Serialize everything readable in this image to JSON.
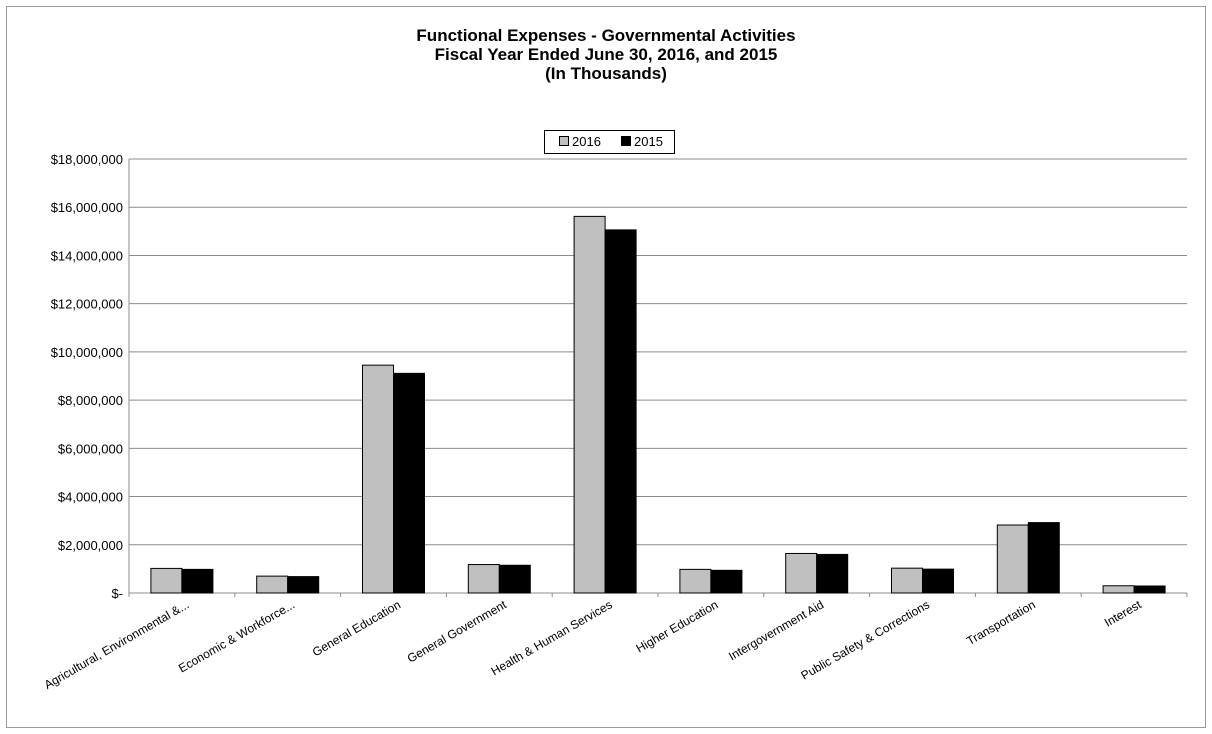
{
  "chart_data": {
    "type": "bar",
    "title": [
      "Functional Expenses - Governmental Activities",
      "Fiscal Year Ended June 30, 2016, and 2015",
      "(In Thousands)"
    ],
    "categories": [
      "Agricultural, Environmental &...",
      "Economic & Workforce...",
      "General Education",
      "General Government",
      "Health & Human Services",
      "Higher Education",
      "Intergovernment Aid",
      "Public Safety & Corrections",
      "Transportation",
      "Interest"
    ],
    "series": [
      {
        "name": "2016",
        "color": "#c0c0c0",
        "values": [
          1020000,
          700000,
          9450000,
          1180000,
          15620000,
          980000,
          1640000,
          1030000,
          2820000,
          300000
        ]
      },
      {
        "name": "2015",
        "color": "#000000",
        "values": [
          980000,
          680000,
          9110000,
          1150000,
          15060000,
          940000,
          1600000,
          990000,
          2920000,
          290000
        ]
      }
    ],
    "ylim": [
      0,
      18000000
    ],
    "yticks": [
      0,
      2000000,
      4000000,
      6000000,
      8000000,
      10000000,
      12000000,
      14000000,
      16000000,
      18000000
    ],
    "ytick_labels": [
      "$-",
      "$2,000,000",
      "$4,000,000",
      "$6,000,000",
      "$8,000,000",
      "$10,000,000",
      "$12,000,000",
      "$14,000,000",
      "$16,000,000",
      "$18,000,000"
    ],
    "grid": true,
    "legend_position": "top-center"
  }
}
